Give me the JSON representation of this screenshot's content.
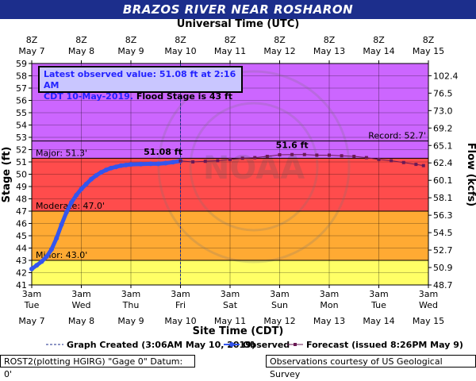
{
  "header": {
    "title": "BRAZOS RIVER NEAR ROSHARON"
  },
  "observed_box": {
    "line1": "Latest observed value: 51.08 ft at 2:16 AM",
    "line2_date": "CDT 10-May-2019.",
    "line2_rest": " Flood Stage is 43 ft"
  },
  "legend": {
    "created": "Graph Created (3:06AM May 10, 2019)",
    "observed": "Observed",
    "forecast": "Forecast (issued 8:26PM May 9)"
  },
  "footer": {
    "left": "ROST2(plotting HGIRG) \"Gage 0\" Datum: 0'",
    "right": "Observations courtesy of US Geological Survey"
  },
  "watermark": "NATIONAL OCEANIC AND ATMOSPHERIC ADMINISTRATION · U.S. DEPARTMENT OF COMMERCE · NOAA",
  "colors": {
    "major": "#cc66ff",
    "flood_major": "#ff4c4c",
    "moderate": "#ffaa33",
    "minor": "#ffff66",
    "observed": "#3355ee",
    "forecast": "#6a1a55"
  },
  "chart_data": {
    "type": "line",
    "top_axis_label": "Universal Time (UTC)",
    "bottom_axis_label": "Site Time (CDT)",
    "ylabel": "Stage (ft)",
    "y2label": "Flow (kcfs)",
    "ylim": [
      41,
      59
    ],
    "yticks": [
      41,
      42,
      43,
      44,
      45,
      46,
      47,
      48,
      49,
      50,
      51,
      52,
      53,
      54,
      55,
      56,
      57,
      58,
      59
    ],
    "top_ticks": [
      {
        "day": 0,
        "hour": "8Z",
        "date": "May 7"
      },
      {
        "day": 1,
        "hour": "8Z",
        "date": "May 8"
      },
      {
        "day": 2,
        "hour": "8Z",
        "date": "May 9"
      },
      {
        "day": 3,
        "hour": "8Z",
        "date": "May 10"
      },
      {
        "day": 4,
        "hour": "8Z",
        "date": "May 11"
      },
      {
        "day": 5,
        "hour": "8Z",
        "date": "May 12"
      },
      {
        "day": 6,
        "hour": "8Z",
        "date": "May 13"
      },
      {
        "day": 7,
        "hour": "8Z",
        "date": "May 14"
      },
      {
        "day": 8,
        "hour": "8Z",
        "date": "May 15"
      }
    ],
    "bottom_ticks": [
      {
        "day": 0,
        "time": "3am",
        "weekday": "Tue",
        "date": "May 7"
      },
      {
        "day": 1,
        "time": "3am",
        "weekday": "Wed",
        "date": "May 8"
      },
      {
        "day": 2,
        "time": "3am",
        "weekday": "Thu",
        "date": "May 9"
      },
      {
        "day": 3,
        "time": "3am",
        "weekday": "Fri",
        "date": "May 10"
      },
      {
        "day": 4,
        "time": "3am",
        "weekday": "Sat",
        "date": "May 11"
      },
      {
        "day": 5,
        "time": "3am",
        "weekday": "Sun",
        "date": "May 12"
      },
      {
        "day": 6,
        "time": "3am",
        "weekday": "Mon",
        "date": "May 13"
      },
      {
        "day": 7,
        "time": "3am",
        "weekday": "Tue",
        "date": "May 14"
      },
      {
        "day": 8,
        "time": "3am",
        "weekday": "Wed",
        "date": "May 15"
      }
    ],
    "flow_ticks": [
      {
        "stage": 52.0,
        "label": "102.4"
      },
      {
        "stage": 51.0,
        "label": "76.5"
      },
      {
        "stage": 50.0,
        "label": "73.0"
      },
      {
        "stage": 49.0,
        "label": "69.2"
      },
      {
        "stage": 48.0,
        "label": "65.1"
      },
      {
        "stage": 47.0,
        "label": "62.4"
      },
      {
        "stage": 46.0,
        "label": "60.1"
      },
      {
        "stage": 45.0,
        "label": "58.1"
      },
      {
        "stage": 44.0,
        "label": "56.3"
      },
      {
        "stage": 43.0,
        "label": "54.5"
      },
      {
        "stage": 42.0,
        "label": "52.7"
      },
      {
        "stage": 41.0,
        "label": "50.9"
      },
      {
        "stage": 40.0,
        "label": "48.7"
      }
    ],
    "thresholds": [
      {
        "name": "Major",
        "label": "Major: 51.3'",
        "value": 51.3
      },
      {
        "name": "Moderate",
        "label": "Moderate: 47.0'",
        "value": 47.0
      },
      {
        "name": "Minor",
        "label": "Minor: 43.0'",
        "value": 43.0
      },
      {
        "name": "Record",
        "label": "Record: 52.7'",
        "value": 52.7
      }
    ],
    "graph_created_day": 3.0,
    "observed_peak_label": "51.08 ft",
    "forecast_peak_label": "51.6 ft",
    "observed": [
      [
        0.0,
        42.3
      ],
      [
        0.1,
        42.6
      ],
      [
        0.2,
        42.9
      ],
      [
        0.3,
        43.3
      ],
      [
        0.4,
        43.9
      ],
      [
        0.5,
        44.8
      ],
      [
        0.6,
        45.9
      ],
      [
        0.7,
        46.9
      ],
      [
        0.8,
        47.7
      ],
      [
        0.9,
        48.3
      ],
      [
        1.0,
        48.8
      ],
      [
        1.1,
        49.2
      ],
      [
        1.2,
        49.6
      ],
      [
        1.3,
        49.9
      ],
      [
        1.4,
        50.15
      ],
      [
        1.5,
        50.35
      ],
      [
        1.6,
        50.5
      ],
      [
        1.7,
        50.6
      ],
      [
        1.8,
        50.7
      ],
      [
        1.9,
        50.75
      ],
      [
        2.0,
        50.8
      ],
      [
        2.2,
        50.82
      ],
      [
        2.4,
        50.85
      ],
      [
        2.55,
        50.85
      ],
      [
        2.7,
        50.9
      ],
      [
        2.85,
        50.98
      ],
      [
        3.0,
        51.08
      ]
    ],
    "forecast": [
      [
        3.0,
        51.08
      ],
      [
        3.25,
        51.0
      ],
      [
        3.5,
        51.05
      ],
      [
        3.75,
        51.1
      ],
      [
        4.0,
        51.2
      ],
      [
        4.25,
        51.3
      ],
      [
        4.5,
        51.35
      ],
      [
        4.75,
        51.45
      ],
      [
        5.0,
        51.58
      ],
      [
        5.25,
        51.6
      ],
      [
        5.5,
        51.6
      ],
      [
        5.75,
        51.55
      ],
      [
        6.0,
        51.55
      ],
      [
        6.25,
        51.5
      ],
      [
        6.5,
        51.45
      ],
      [
        6.75,
        51.35
      ],
      [
        7.0,
        51.2
      ],
      [
        7.25,
        51.1
      ],
      [
        7.5,
        50.95
      ],
      [
        7.75,
        50.8
      ],
      [
        7.9,
        50.7
      ]
    ]
  }
}
